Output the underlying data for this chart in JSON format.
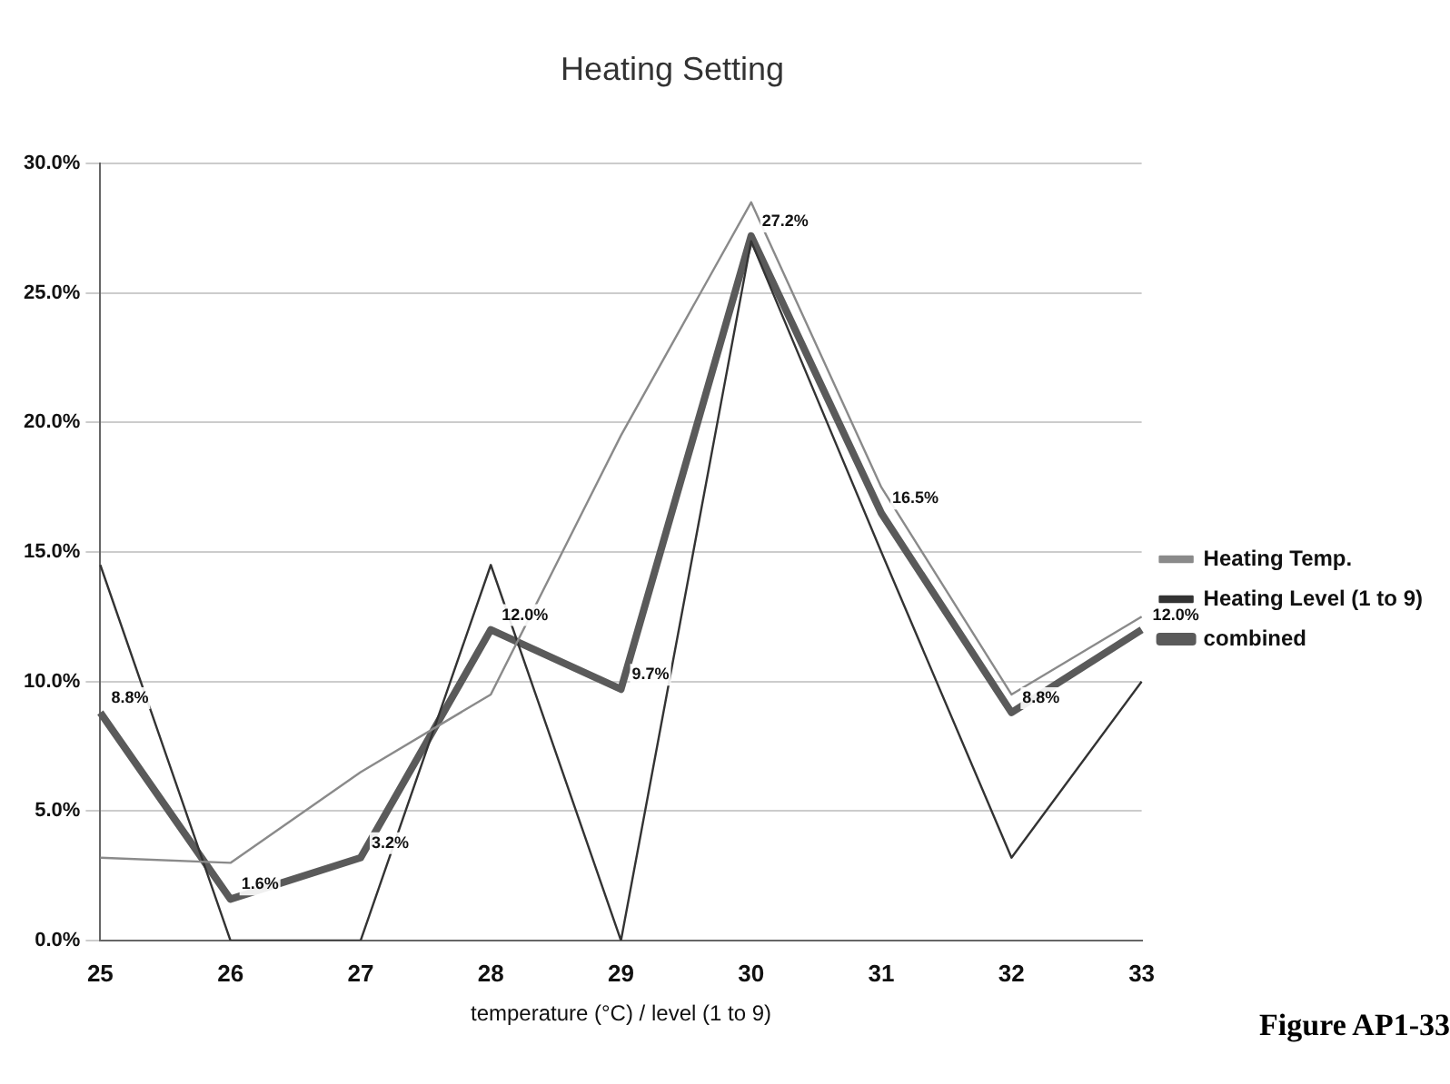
{
  "chart_data": {
    "type": "line",
    "title": "Heating Setting",
    "xlabel": "temperature (°C) / level (1 to 9)",
    "categories": [
      "25",
      "26",
      "27",
      "28",
      "29",
      "30",
      "31",
      "32",
      "33"
    ],
    "series": [
      {
        "name": "Heating Temp.",
        "color": "#8a8a8a",
        "values": [
          3.2,
          3.0,
          6.5,
          9.5,
          19.5,
          28.5,
          17.5,
          9.5,
          12.5
        ]
      },
      {
        "name": "Heating Level (1 to 9)",
        "color": "#333333",
        "values": [
          14.5,
          0,
          0,
          14.5,
          0,
          27,
          15,
          3.2,
          10
        ]
      },
      {
        "name": "combined",
        "color": "#5a5a5a",
        "values": [
          8.8,
          1.6,
          3.2,
          12.0,
          9.7,
          27.2,
          16.5,
          8.8,
          12.0
        ],
        "value_labels": [
          "8.8%",
          "1.6%",
          "3.2%",
          "12.0%",
          "9.7%",
          "27.2%",
          "16.5%",
          "8.8%",
          "12.0%"
        ]
      }
    ],
    "ylim": [
      0,
      30
    ],
    "yticks": [
      {
        "value": 0,
        "label": "0.0%"
      },
      {
        "value": 5,
        "label": "5.0%"
      },
      {
        "value": 10,
        "label": "10.0%"
      },
      {
        "value": 15,
        "label": "15.0%"
      },
      {
        "value": 20,
        "label": "20.0%"
      },
      {
        "value": 25,
        "label": "25.0%"
      },
      {
        "value": 30,
        "label": "30.0%"
      }
    ],
    "grid": "y",
    "legend": "right",
    "marker": "none",
    "annotations": [
      "Figure AP1-33"
    ]
  }
}
